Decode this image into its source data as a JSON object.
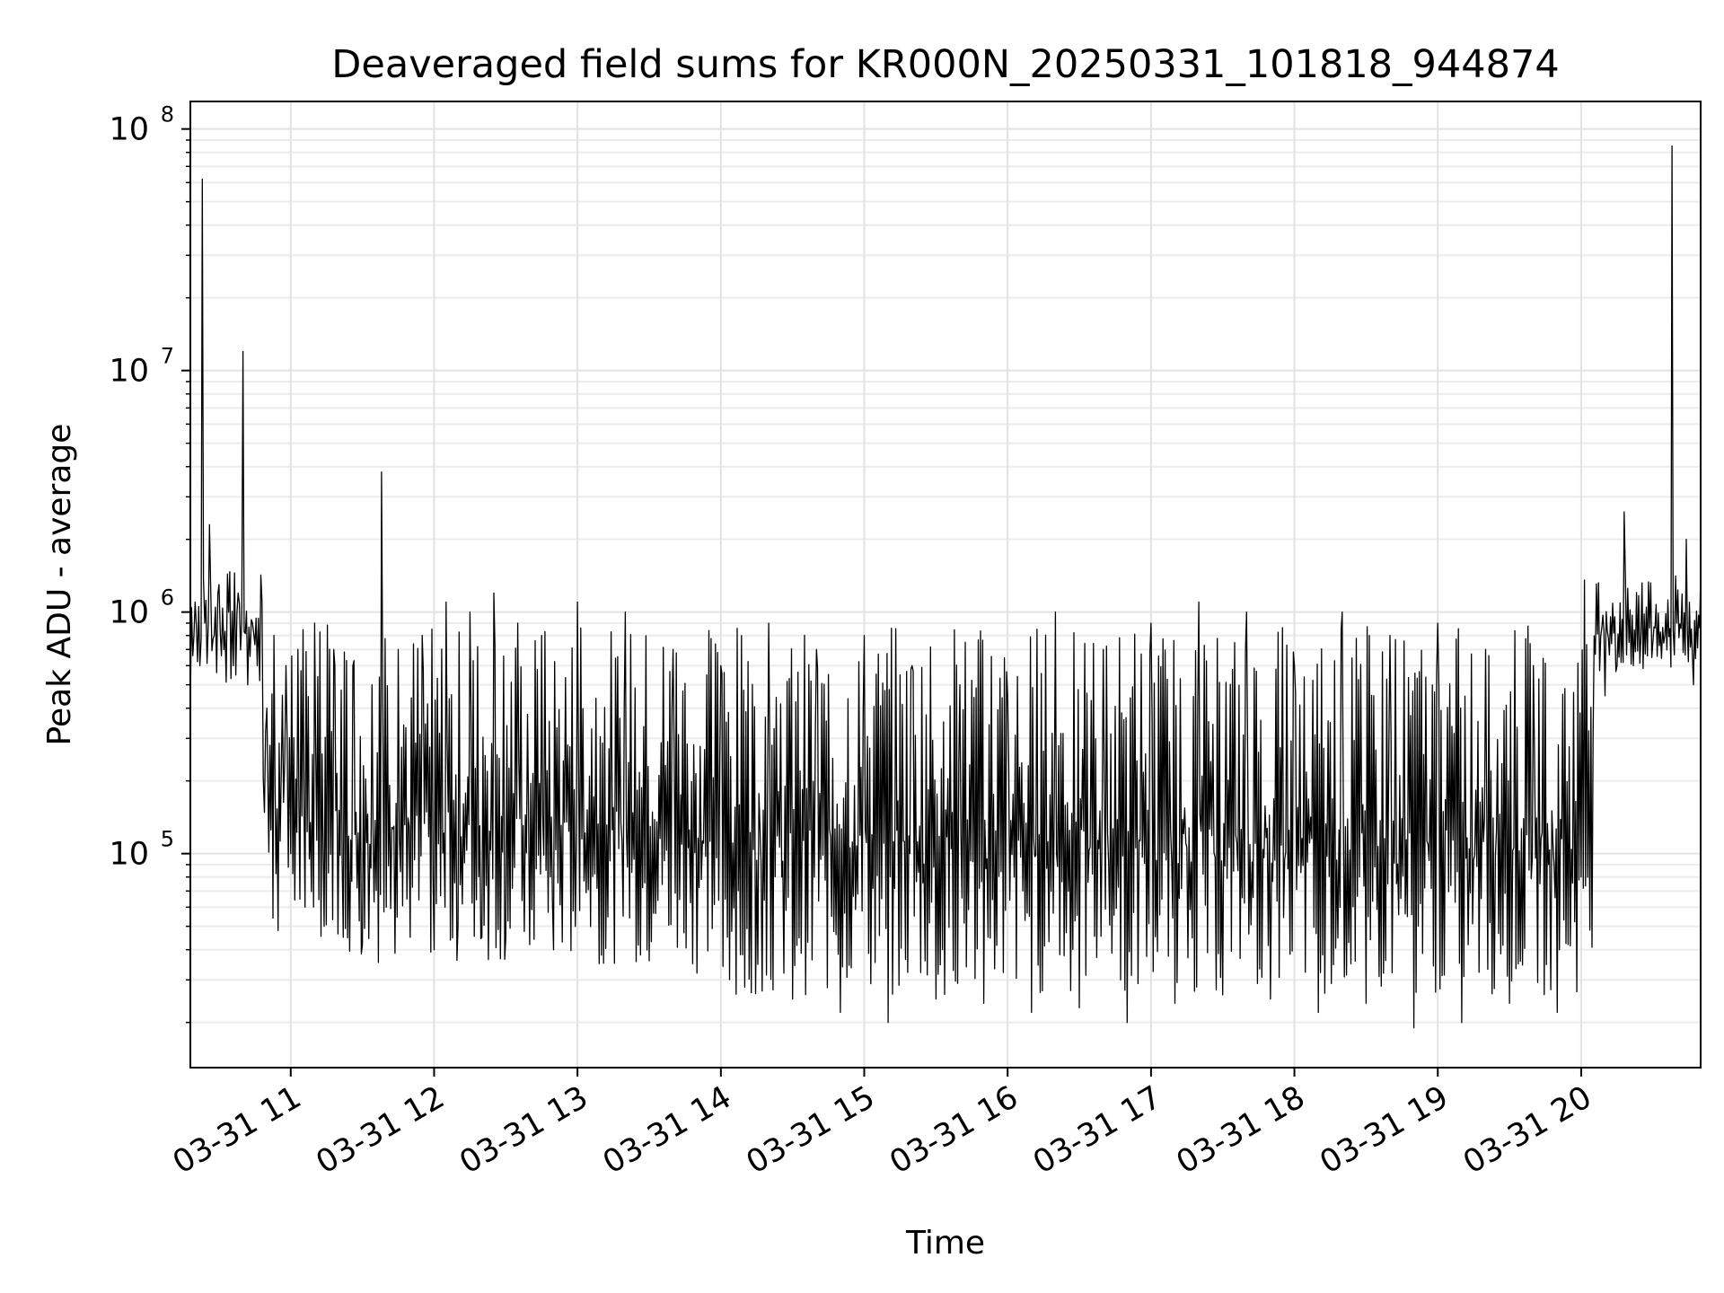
{
  "chart_data": {
    "type": "line",
    "title": "Deaveraged field sums for KR000N_20250331_101818_944874",
    "xlabel": "Time",
    "ylabel": "Peak ADU - average",
    "yscale": "log",
    "grid": true,
    "x_range": [
      "03-31 10:18",
      "03-31 20:50"
    ],
    "ylim": [
      13000,
      130000000
    ],
    "x_ticks": [
      "03-31 11",
      "03-31 12",
      "03-31 13",
      "03-31 14",
      "03-31 15",
      "03-31 16",
      "03-31 17",
      "03-31 18",
      "03-31 19",
      "03-31 20"
    ],
    "y_ticks": [
      {
        "base": "10",
        "exp": "5",
        "value": 100000
      },
      {
        "base": "10",
        "exp": "6",
        "value": 1000000
      },
      {
        "base": "10",
        "exp": "7",
        "value": 10000000
      },
      {
        "base": "10",
        "exp": "8",
        "value": 100000000
      }
    ],
    "line_color": "#000000",
    "series": [
      {
        "points": [
          [
            "03-31 10:18",
            420000
          ],
          [
            "03-31 10:20",
            1100000
          ],
          [
            "03-31 10:22",
            600000
          ],
          [
            "03-31 10:23",
            62000000
          ],
          [
            "03-31 10:24",
            900000
          ],
          [
            "03-31 10:26",
            2300000
          ],
          [
            "03-31 10:28",
            800000
          ],
          [
            "03-31 10:30",
            1300000
          ],
          [
            "03-31 10:32",
            700000
          ],
          [
            "03-31 10:34",
            1000000
          ],
          [
            "03-31 10:36",
            600000
          ],
          [
            "03-31 10:38",
            1200000
          ],
          [
            "03-31 10:40",
            12000000
          ],
          [
            "03-31 10:42",
            500000
          ],
          [
            "03-31 10:44",
            900000
          ],
          [
            "03-31 10:46",
            600000
          ],
          [
            "03-31 10:48",
            1100000
          ],
          [
            "03-31 10:50",
            400000
          ],
          [
            "03-31 10:53",
            800000
          ],
          [
            "03-31 10:56",
            200000
          ],
          [
            "03-31 10:58",
            600000
          ],
          [
            "03-31 11:00",
            100000
          ],
          [
            "03-31 11:03",
            700000
          ],
          [
            "03-31 11:06",
            60000
          ],
          [
            "03-31 11:10",
            900000
          ],
          [
            "03-31 11:14",
            50000
          ],
          [
            "03-31 11:18",
            700000
          ],
          [
            "03-31 11:22",
            45000
          ],
          [
            "03-31 11:26",
            600000
          ],
          [
            "03-31 11:30",
            42000
          ],
          [
            "03-31 11:34",
            500000
          ],
          [
            "03-31 11:38",
            3800000
          ],
          [
            "03-31 11:40",
            60000
          ],
          [
            "03-31 11:45",
            700000
          ],
          [
            "03-31 11:50",
            45000
          ],
          [
            "03-31 11:55",
            800000
          ],
          [
            "03-31 12:00",
            40000
          ],
          [
            "03-31 12:05",
            1100000
          ],
          [
            "03-31 12:10",
            50000
          ],
          [
            "03-31 12:15",
            1000000
          ],
          [
            "03-31 12:20",
            45000
          ],
          [
            "03-31 12:25",
            1200000
          ],
          [
            "03-31 12:30",
            45000
          ],
          [
            "03-31 12:35",
            900000
          ],
          [
            "03-31 12:40",
            42000
          ],
          [
            "03-31 12:45",
            800000
          ],
          [
            "03-31 12:50",
            40000
          ],
          [
            "03-31 13:00",
            1100000
          ],
          [
            "03-31 13:10",
            38000
          ],
          [
            "03-31 13:20",
            1000000
          ],
          [
            "03-31 13:30",
            36000
          ],
          [
            "03-31 13:40",
            700000
          ],
          [
            "03-31 13:50",
            32000
          ],
          [
            "03-31 14:00",
            600000
          ],
          [
            "03-31 14:10",
            28000
          ],
          [
            "03-31 14:20",
            900000
          ],
          [
            "03-31 14:30",
            25000
          ],
          [
            "03-31 14:40",
            700000
          ],
          [
            "03-31 14:50",
            22000
          ],
          [
            "03-31 15:00",
            800000
          ],
          [
            "03-31 15:10",
            20000
          ],
          [
            "03-31 15:20",
            600000
          ],
          [
            "03-31 15:30",
            25000
          ],
          [
            "03-31 15:40",
            500000
          ],
          [
            "03-31 15:50",
            24000
          ],
          [
            "03-31 16:00",
            450000
          ],
          [
            "03-31 16:10",
            22000
          ],
          [
            "03-31 16:20",
            1000000
          ],
          [
            "03-31 16:30",
            23000
          ],
          [
            "03-31 16:40",
            700000
          ],
          [
            "03-31 16:50",
            20000
          ],
          [
            "03-31 17:00",
            900000
          ],
          [
            "03-31 17:10",
            24000
          ],
          [
            "03-31 17:20",
            1100000
          ],
          [
            "03-31 17:30",
            26000
          ],
          [
            "03-31 17:40",
            1000000
          ],
          [
            "03-31 17:50",
            25000
          ],
          [
            "03-31 18:00",
            600000
          ],
          [
            "03-31 18:10",
            22000
          ],
          [
            "03-31 18:20",
            1000000
          ],
          [
            "03-31 18:30",
            24000
          ],
          [
            "03-31 18:40",
            800000
          ],
          [
            "03-31 18:50",
            19000
          ],
          [
            "03-31 19:00",
            900000
          ],
          [
            "03-31 19:10",
            20000
          ],
          [
            "03-31 19:20",
            700000
          ],
          [
            "03-31 19:30",
            24000
          ],
          [
            "03-31 19:40",
            600000
          ],
          [
            "03-31 19:50",
            22000
          ],
          [
            "03-31 20:00",
            80000
          ],
          [
            "03-31 20:05",
            300000
          ],
          [
            "03-31 20:10",
            450000
          ],
          [
            "03-31 20:15",
            600000
          ],
          [
            "03-31 20:18",
            2600000
          ],
          [
            "03-31 20:20",
            750000
          ],
          [
            "03-31 20:25",
            800000
          ],
          [
            "03-31 20:30",
            750000
          ],
          [
            "03-31 20:35",
            800000
          ],
          [
            "03-31 20:38",
            85000000
          ],
          [
            "03-31 20:40",
            900000
          ],
          [
            "03-31 20:44",
            2000000
          ],
          [
            "03-31 20:47",
            500000
          ],
          [
            "03-31 20:50",
            1500000
          ]
        ]
      }
    ]
  }
}
